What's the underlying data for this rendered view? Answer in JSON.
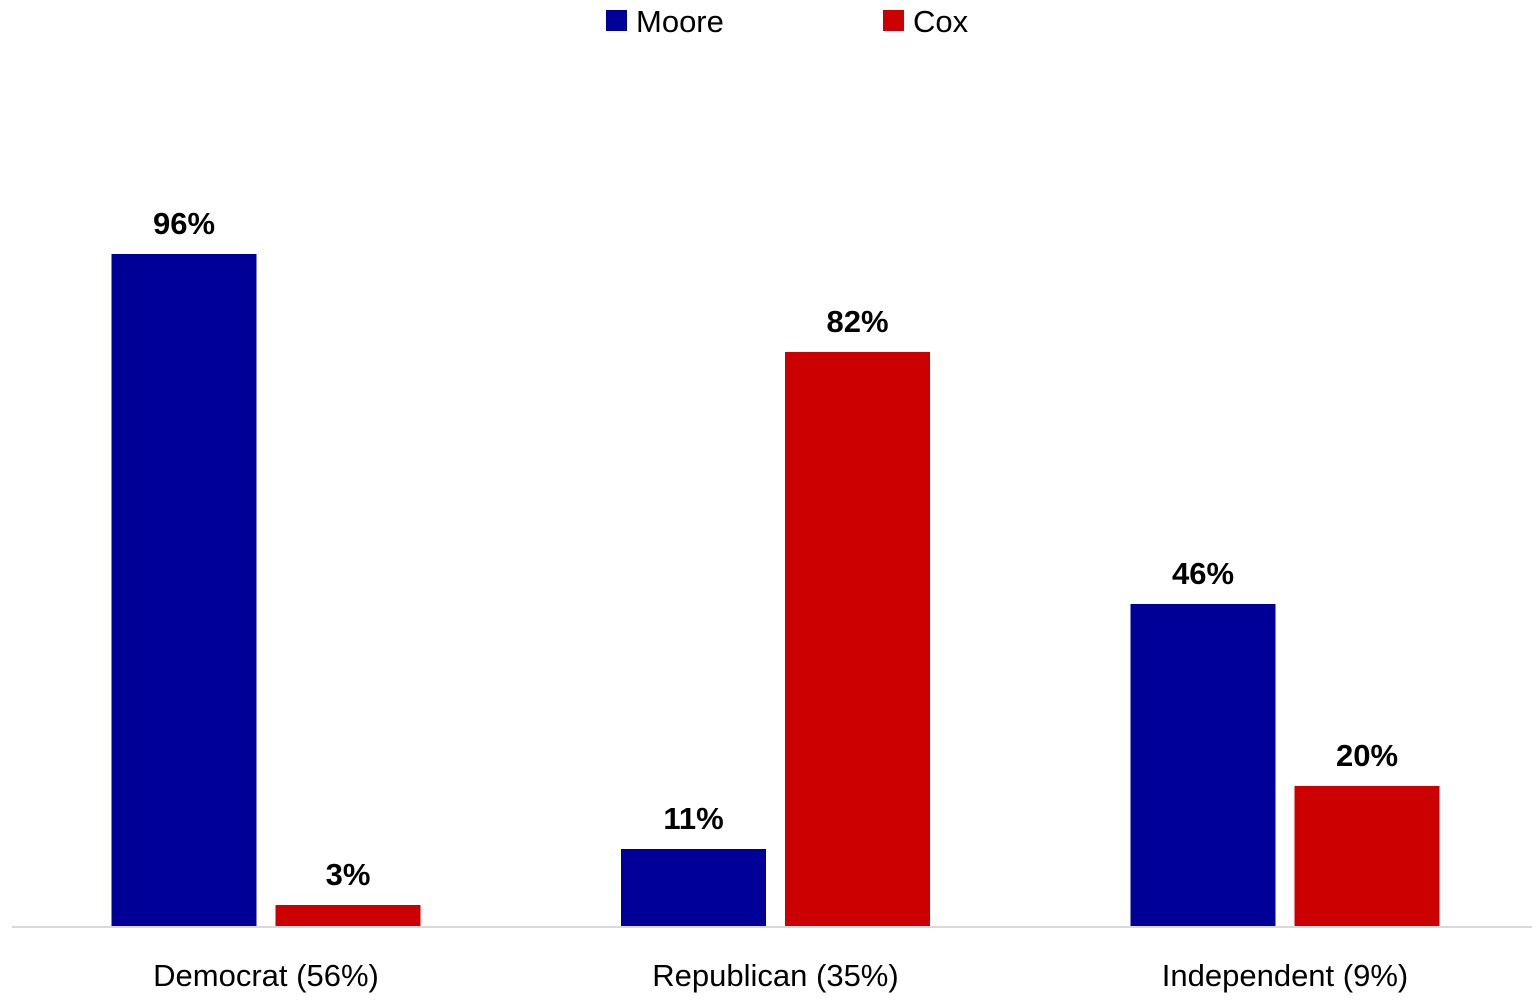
{
  "chart_data": {
    "type": "bar",
    "title": "",
    "xlabel": "",
    "ylabel": "",
    "categories": [
      "Democrat (56%)",
      "Republican (35%)",
      "Independent (9%)"
    ],
    "series": [
      {
        "name": "Moore",
        "color": "#000099",
        "values": [
          96,
          11,
          46
        ],
        "labels": [
          "96%",
          "11%",
          "46%"
        ]
      },
      {
        "name": "Cox",
        "color": "#cc0000",
        "values": [
          3,
          82,
          20
        ],
        "labels": [
          "3%",
          "82%",
          "20%"
        ]
      }
    ],
    "ylim": [
      0,
      100
    ],
    "grid": false,
    "legend_position": "top-center",
    "axis_color": "#d9d9d9"
  }
}
